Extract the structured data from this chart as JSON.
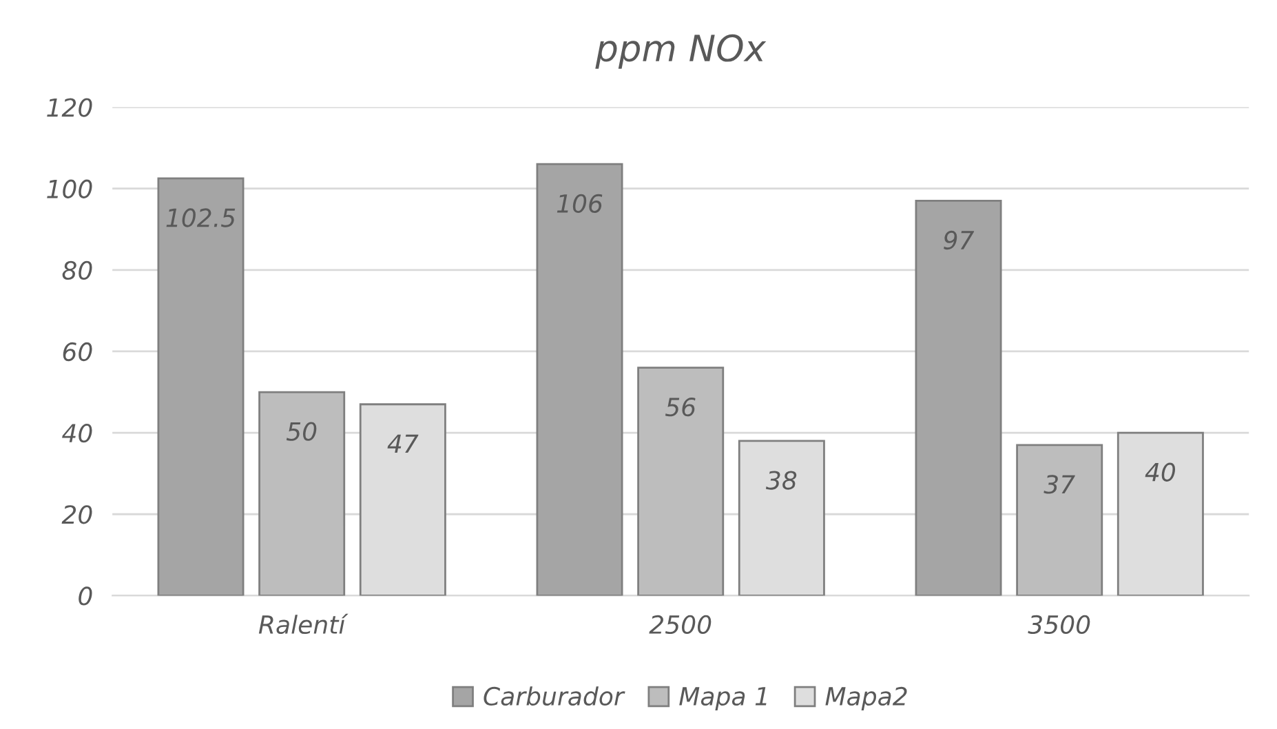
{
  "chart_data": {
    "type": "bar",
    "title": "ppm NOx",
    "categories": [
      "Ralentí",
      "2500",
      "3500"
    ],
    "series": [
      {
        "name": "Carburador",
        "color": "#a5a5a5",
        "values": [
          102.5,
          106,
          97
        ]
      },
      {
        "name": "Mapa 1",
        "color": "#bdbdbd",
        "values": [
          50,
          56,
          37
        ]
      },
      {
        "name": "Mapa2",
        "color": "#dedede",
        "values": [
          47,
          38,
          40
        ]
      }
    ],
    "ylim": [
      0,
      120
    ],
    "yticks": [
      0,
      20,
      40,
      60,
      80,
      100,
      120
    ],
    "grid": "y",
    "legend": "bottom",
    "data_labels": true
  }
}
